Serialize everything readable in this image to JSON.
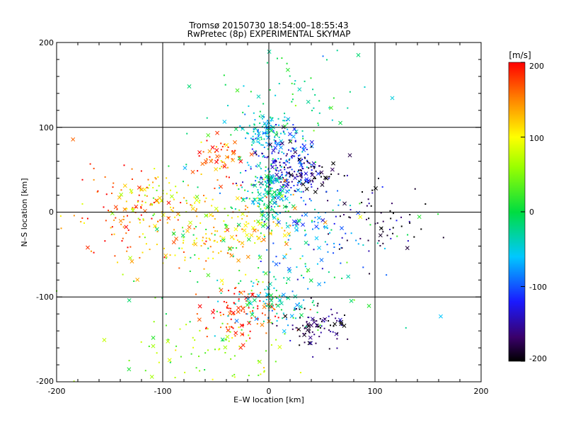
{
  "chart_data": {
    "type": "scatter",
    "title": "Tromsø 20150730 18:54:00–18:55:43",
    "subtitle": "RwPretec (8p) EXPERIMENTAL SKYMAP",
    "xlabel": "E–W location [km]",
    "ylabel": "N–S location [km]",
    "xlim": [
      -200,
      200
    ],
    "ylim": [
      -200,
      200
    ],
    "xticks": [
      "-200",
      "-100",
      "0",
      "100",
      "200"
    ],
    "yticks": [
      "-200",
      "-100",
      "0",
      "100",
      "200"
    ],
    "grid": true,
    "colorbar": {
      "label": "[m/s]",
      "range": [
        -200,
        200
      ],
      "ticks": [
        "200",
        "100",
        "0",
        "-100",
        "-200"
      ],
      "colormap": "rainbow (black-purple-blue-cyan-green-yellow-red)"
    },
    "markers": [
      "dot",
      "x"
    ],
    "clusters": [
      {
        "x": 0,
        "y": 95,
        "sx": 12,
        "sy": 10,
        "v": -60,
        "n": 120
      },
      {
        "x": 15,
        "y": 50,
        "sx": 18,
        "sy": 18,
        "v": -130,
        "n": 200
      },
      {
        "x": 40,
        "y": 45,
        "sx": 15,
        "sy": 15,
        "v": -190,
        "n": 60
      },
      {
        "x": -45,
        "y": 65,
        "sx": 14,
        "sy": 12,
        "v": 170,
        "n": 60
      },
      {
        "x": 0,
        "y": 20,
        "sx": 12,
        "sy": 20,
        "v": -30,
        "n": 160
      },
      {
        "x": -50,
        "y": -20,
        "sx": 40,
        "sy": 25,
        "v": 120,
        "n": 200
      },
      {
        "x": -140,
        "y": 0,
        "sx": 30,
        "sy": 30,
        "v": 170,
        "n": 90
      },
      {
        "x": -110,
        "y": 20,
        "sx": 20,
        "sy": 15,
        "v": 90,
        "n": 60
      },
      {
        "x": 40,
        "y": -20,
        "sx": 25,
        "sy": 25,
        "v": -90,
        "n": 90
      },
      {
        "x": 110,
        "y": -5,
        "sx": 25,
        "sy": 25,
        "v": -190,
        "n": 60
      },
      {
        "x": -25,
        "y": -120,
        "sx": 18,
        "sy": 15,
        "v": 180,
        "n": 110
      },
      {
        "x": 45,
        "y": -135,
        "sx": 18,
        "sy": 12,
        "v": -175,
        "n": 90
      },
      {
        "x": 5,
        "y": -110,
        "sx": 22,
        "sy": 18,
        "v": -40,
        "n": 90
      },
      {
        "x": -60,
        "y": -165,
        "sx": 40,
        "sy": 20,
        "v": 60,
        "n": 80
      },
      {
        "x": 20,
        "y": 140,
        "sx": 40,
        "sy": 30,
        "v": -20,
        "n": 70
      },
      {
        "x": 0,
        "y": -40,
        "sx": 70,
        "sy": 60,
        "v": 0,
        "n": 120
      }
    ]
  }
}
